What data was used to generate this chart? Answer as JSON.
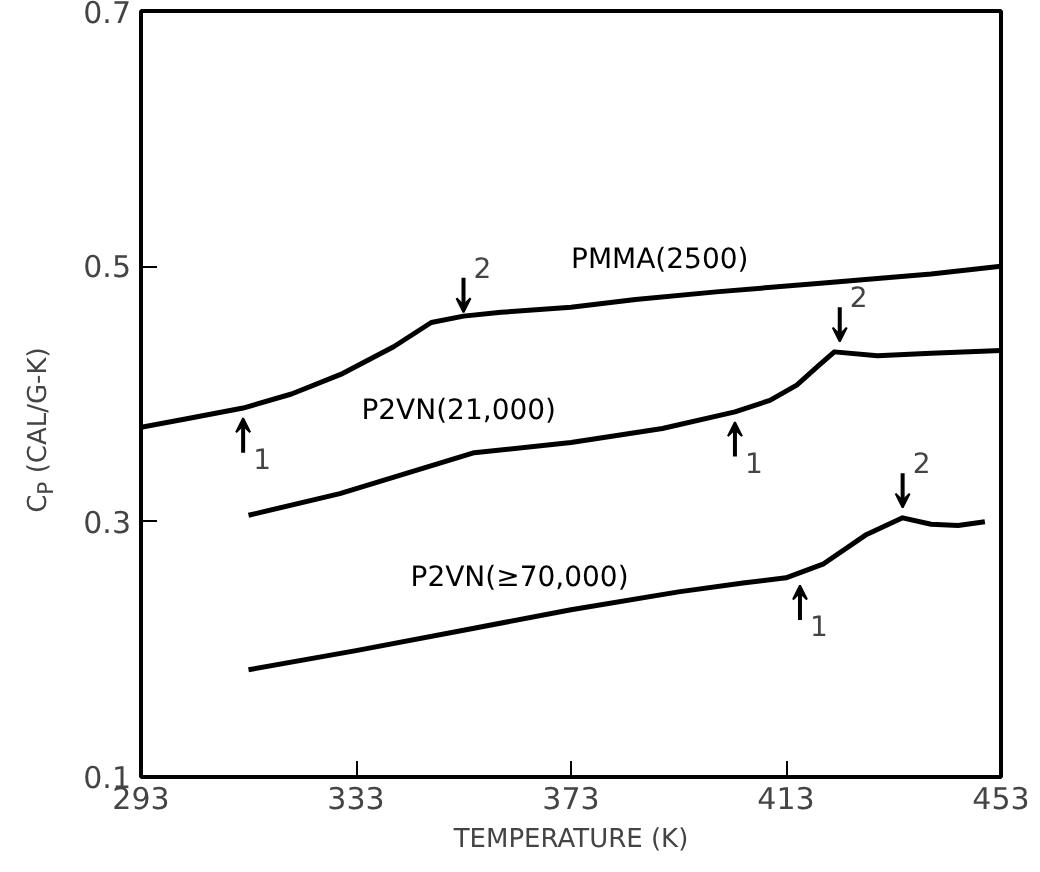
{
  "chart_data": {
    "type": "line",
    "xlabel": "TEMPERATURE (K)",
    "ylabel": "C$_{P}$ (CAL/G-K)",
    "xlim": [
      293,
      453
    ],
    "ylim": [
      0.1,
      0.7
    ],
    "xticks": [
      293,
      333,
      373,
      413,
      453
    ],
    "yticks": [
      0.1,
      0.3,
      0.5,
      0.7
    ],
    "grid": false,
    "legend": false,
    "marker": "none",
    "line_style": "solid",
    "series": [
      {
        "name": "PMMA(2500)",
        "color": "#000000",
        "x": [
          293,
          302,
          312,
          321,
          330.5,
          340,
          347,
          353,
          360,
          373,
          385,
          400,
          420,
          440,
          453
        ],
        "values": [
          0.374,
          0.381,
          0.389,
          0.4,
          0.416,
          0.437,
          0.456,
          0.461,
          0.464,
          0.468,
          0.474,
          0.48,
          0.487,
          0.494,
          0.5
        ]
      },
      {
        "name": "P2VN(21,000)",
        "color": "#000000",
        "x": [
          313,
          330,
          355,
          373,
          390,
          403.5,
          410,
          415,
          419,
          422,
          430,
          440,
          453
        ],
        "values": [
          0.305,
          0.322,
          0.354,
          0.362,
          0.373,
          0.386,
          0.395,
          0.407,
          0.422,
          0.433,
          0.43,
          0.432,
          0.434
        ]
      },
      {
        "name": "P2VN(≥70,000)",
        "color": "#000000",
        "x": [
          313,
          333,
          353,
          373,
          393,
          405,
          413,
          420,
          428,
          434.7,
          440,
          445,
          450
        ],
        "values": [
          0.184,
          0.199,
          0.215,
          0.231,
          0.245,
          0.252,
          0.256,
          0.267,
          0.29,
          0.303,
          0.298,
          0.297,
          0.3
        ]
      }
    ],
    "annotations": [
      {
        "text": "1",
        "x": 312,
        "y": 0.389
      },
      {
        "text": "2",
        "x": 353,
        "y": 0.456
      },
      {
        "text": "1",
        "x": 403.5,
        "y": 0.386
      },
      {
        "text": "2",
        "x": 423,
        "y": 0.433
      },
      {
        "text": "1",
        "x": 415.6,
        "y": 0.258
      },
      {
        "text": "2",
        "x": 434.7,
        "y": 0.303
      }
    ]
  }
}
